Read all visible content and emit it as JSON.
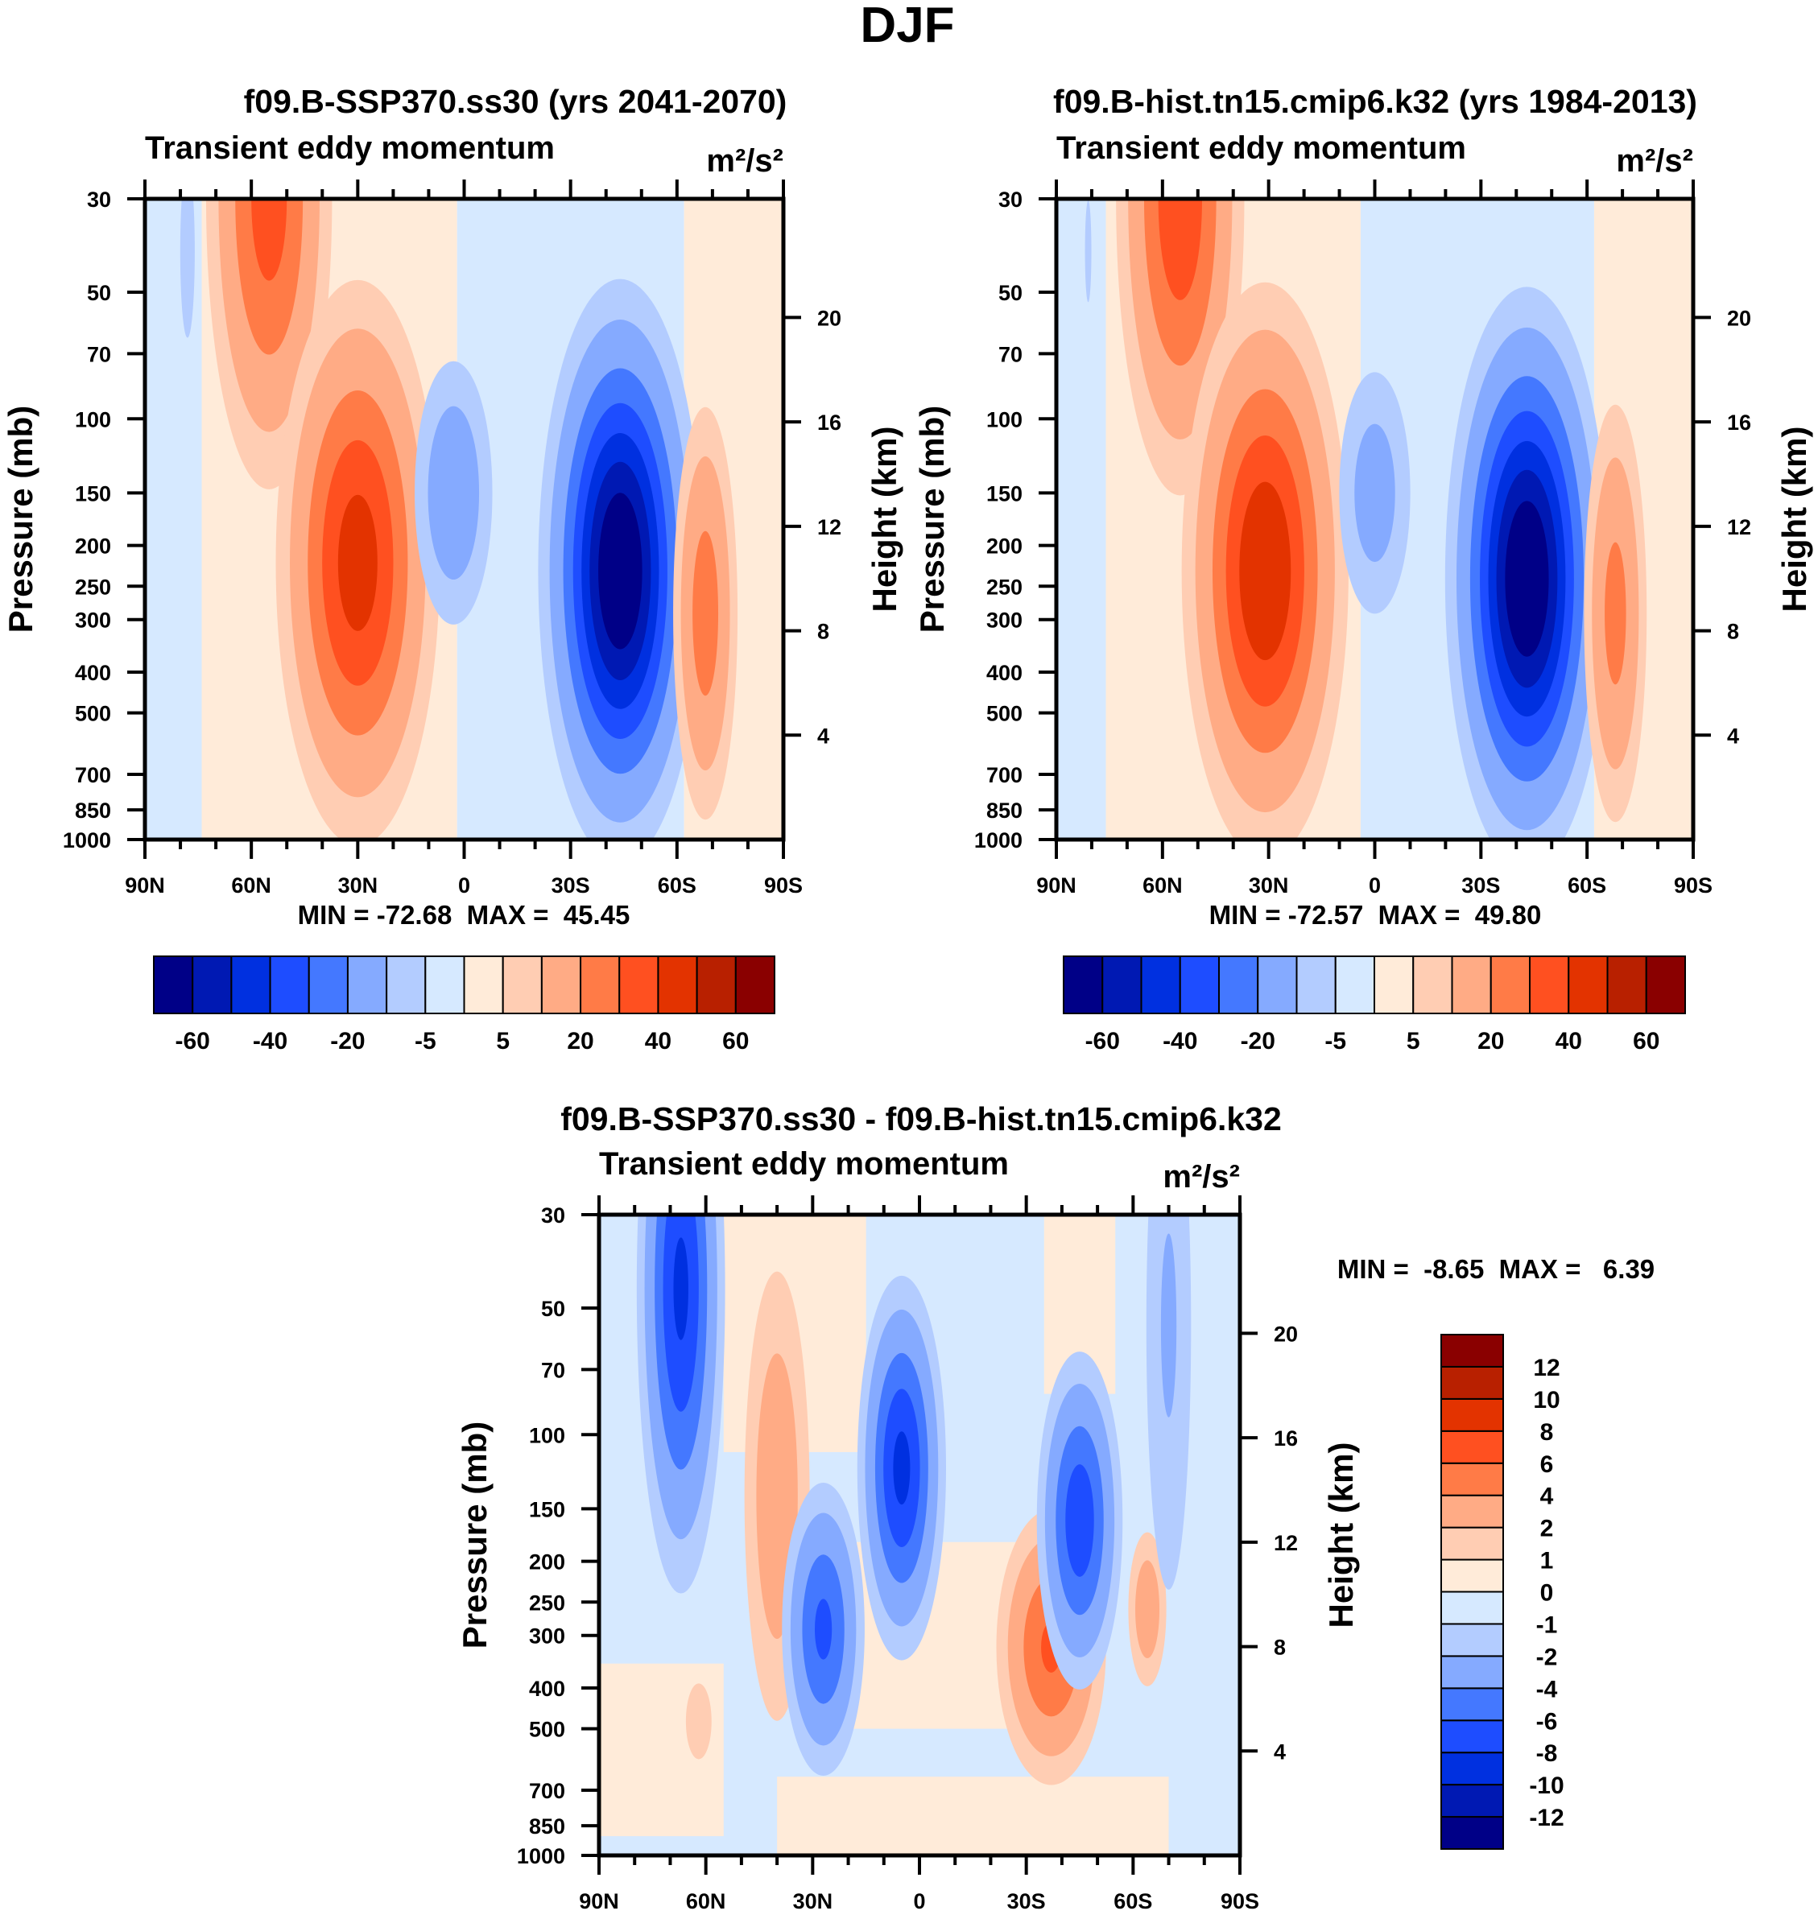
{
  "figure_title": "DJF",
  "colors": [
    "#000087",
    "#0019b3",
    "#0030e0",
    "#1e4dff",
    "#4478ff",
    "#85aaff",
    "#b3ccff",
    "#d6e9ff",
    "#ffebd9",
    "#ffcdb3",
    "#ffab85",
    "#ff7b47",
    "#ff5020",
    "#e33300",
    "#b82000",
    "#8a0000"
  ],
  "chart_data": [
    {
      "type": "heatmap",
      "subtype": "filled-contour",
      "title": "f09.B-SSP370.ss30 (yrs 2041-2070)",
      "left_string": "Transient eddy momentum",
      "units": "m²/s²",
      "xlabel": "",
      "ylabel": "Pressure (mb)",
      "ylabel_right": "Height (km)",
      "xlim": [
        90,
        -90
      ],
      "ylim": [
        1000,
        30
      ],
      "yscale": "log",
      "x_ticks": [
        90,
        60,
        30,
        0,
        -30,
        -60,
        -90
      ],
      "x_tick_labels": [
        "90N",
        "60N",
        "30N",
        "0",
        "30S",
        "60S",
        "90S"
      ],
      "y_ticks": [
        30,
        50,
        70,
        100,
        150,
        200,
        250,
        300,
        400,
        500,
        700,
        850,
        1000
      ],
      "y_tick_labels": [
        "30",
        "50",
        "70",
        "100",
        "150",
        "200",
        "250",
        "300",
        "400",
        "500",
        "700",
        "850",
        "1000"
      ],
      "height_ticks_km": [
        20,
        16,
        12,
        8,
        4
      ],
      "height_tick_labels": [
        "20",
        "16",
        "12",
        "8",
        "4"
      ],
      "stats": "MIN = -72.68  MAX =  45.45",
      "levels": [
        -60,
        -50,
        -40,
        -30,
        -20,
        -10,
        -5,
        0,
        5,
        10,
        20,
        30,
        40,
        50,
        60
      ],
      "colorbar_labels": [
        "-60",
        "-40",
        "-20",
        "-5",
        "5",
        "20",
        "40",
        "60"
      ],
      "colorbar_orientation": "horizontal",
      "bands": [
        {
          "lat": [
            90,
            74
          ],
          "p": [
            30,
            1000
          ],
          "value": -2
        },
        {
          "lat": [
            74,
            2
          ],
          "p": [
            30,
            1000
          ],
          "value": 2
        },
        {
          "lat": [
            2,
            -62
          ],
          "p": [
            30,
            1000
          ],
          "value": -2
        },
        {
          "lat": [
            -62,
            -90
          ],
          "p": [
            30,
            1000
          ],
          "value": 2
        }
      ],
      "features": [
        {
          "lat": 78,
          "p": 40,
          "amp": -7,
          "slat": 2.5,
          "slogp": 0.25
        },
        {
          "lat": 55,
          "p": 30,
          "amp": 35,
          "slat": 9,
          "slogp": 0.35
        },
        {
          "lat": 30,
          "p": 220,
          "amp": 45.45,
          "slat": 11,
          "slogp": 0.32
        },
        {
          "lat": 3,
          "p": 150,
          "amp": -17,
          "slat": 7,
          "slogp": 0.2
        },
        {
          "lat": -44,
          "p": 230,
          "amp": -72.68,
          "slat": 10,
          "slogp": 0.3
        },
        {
          "lat": -68,
          "p": 290,
          "amp": 26,
          "slat": 5,
          "slogp": 0.27
        }
      ]
    },
    {
      "type": "heatmap",
      "subtype": "filled-contour",
      "title": "f09.B-hist.tn15.cmip6.k32 (yrs 1984-2013)",
      "left_string": "Transient eddy momentum",
      "units": "m²/s²",
      "xlabel": "",
      "ylabel": "Pressure (mb)",
      "ylabel_right": "Height (km)",
      "xlim": [
        90,
        -90
      ],
      "ylim": [
        1000,
        30
      ],
      "yscale": "log",
      "x_ticks": [
        90,
        60,
        30,
        0,
        -30,
        -60,
        -90
      ],
      "x_tick_labels": [
        "90N",
        "60N",
        "30N",
        "0",
        "30S",
        "60S",
        "90S"
      ],
      "y_ticks": [
        30,
        50,
        70,
        100,
        150,
        200,
        250,
        300,
        400,
        500,
        700,
        850,
        1000
      ],
      "y_tick_labels": [
        "30",
        "50",
        "70",
        "100",
        "150",
        "200",
        "250",
        "300",
        "400",
        "500",
        "700",
        "850",
        "1000"
      ],
      "height_ticks_km": [
        20,
        16,
        12,
        8,
        4
      ],
      "height_tick_labels": [
        "20",
        "16",
        "12",
        "8",
        "4"
      ],
      "stats": "MIN = -72.57  MAX =  49.80",
      "levels": [
        -60,
        -50,
        -40,
        -30,
        -20,
        -10,
        -5,
        0,
        5,
        10,
        20,
        30,
        40,
        50,
        60
      ],
      "colorbar_labels": [
        "-60",
        "-40",
        "-20",
        "-5",
        "5",
        "20",
        "40",
        "60"
      ],
      "colorbar_orientation": "horizontal",
      "bands": [
        {
          "lat": [
            90,
            76
          ],
          "p": [
            30,
            1000
          ],
          "value": -2
        },
        {
          "lat": [
            76,
            4
          ],
          "p": [
            30,
            1000
          ],
          "value": 2
        },
        {
          "lat": [
            4,
            -62
          ],
          "p": [
            30,
            1000
          ],
          "value": -2
        },
        {
          "lat": [
            -62,
            -90
          ],
          "p": [
            30,
            1000
          ],
          "value": 2
        }
      ],
      "features": [
        {
          "lat": 81,
          "p": 40,
          "amp": -6,
          "slat": 1.5,
          "slogp": 0.2
        },
        {
          "lat": 55,
          "p": 30,
          "amp": 38,
          "slat": 9,
          "slogp": 0.35
        },
        {
          "lat": 31,
          "p": 230,
          "amp": 49.8,
          "slat": 11,
          "slogp": 0.32
        },
        {
          "lat": 0,
          "p": 150,
          "amp": -14,
          "slat": 7,
          "slogp": 0.2
        },
        {
          "lat": -43,
          "p": 240,
          "amp": -72.57,
          "slat": 10,
          "slogp": 0.3
        },
        {
          "lat": -68,
          "p": 290,
          "amp": 24,
          "slat": 5,
          "slogp": 0.28
        }
      ]
    },
    {
      "type": "heatmap",
      "subtype": "filled-contour",
      "title": "f09.B-SSP370.ss30 - f09.B-hist.tn15.cmip6.k32",
      "left_string": "Transient eddy momentum",
      "units": "m²/s²",
      "xlabel": "",
      "ylabel": "Pressure (mb)",
      "ylabel_right": "Height (km)",
      "xlim": [
        90,
        -90
      ],
      "ylim": [
        1000,
        30
      ],
      "yscale": "log",
      "x_ticks": [
        90,
        60,
        30,
        0,
        -30,
        -60,
        -90
      ],
      "x_tick_labels": [
        "90N",
        "60N",
        "30N",
        "0",
        "30S",
        "60S",
        "90S"
      ],
      "y_ticks": [
        30,
        50,
        70,
        100,
        150,
        200,
        250,
        300,
        400,
        500,
        700,
        850,
        1000
      ],
      "y_tick_labels": [
        "30",
        "50",
        "70",
        "100",
        "150",
        "200",
        "250",
        "300",
        "400",
        "500",
        "700",
        "850",
        "1000"
      ],
      "height_ticks_km": [
        20,
        16,
        12,
        8,
        4
      ],
      "height_tick_labels": [
        "20",
        "16",
        "12",
        "8",
        "4"
      ],
      "stats": "MIN =  -8.65  MAX =   6.39",
      "levels": [
        -12,
        -10,
        -8,
        -6,
        -4,
        -2,
        -1,
        0,
        1,
        2,
        4,
        6,
        8,
        10,
        12
      ],
      "colorbar_labels": [
        "-12",
        "-10",
        "-8",
        "-6",
        "-4",
        "-2",
        "-1",
        "0",
        "1",
        "2",
        "4",
        "6",
        "8",
        "10",
        "12"
      ],
      "colorbar_orientation": "vertical",
      "bands": [
        {
          "lat": [
            90,
            -90
          ],
          "p": [
            30,
            1000
          ],
          "value": -0.5
        },
        {
          "lat": [
            55,
            15
          ],
          "p": [
            30,
            110
          ],
          "value": 0.5
        },
        {
          "lat": [
            -35,
            -55
          ],
          "p": [
            30,
            80
          ],
          "value": 0.5
        },
        {
          "lat": [
            20,
            -30
          ],
          "p": [
            180,
            500
          ],
          "value": 0.5
        },
        {
          "lat": [
            90,
            55
          ],
          "p": [
            350,
            900
          ],
          "value": 0.5
        },
        {
          "lat": [
            40,
            -70
          ],
          "p": [
            650,
            1000
          ],
          "value": 0.5
        }
      ],
      "features": [
        {
          "lat": 67,
          "p": 45,
          "amp": -8.5,
          "slat": 6,
          "slogp": 0.35
        },
        {
          "lat": 40,
          "p": 140,
          "amp": 3.2,
          "slat": 6,
          "slogp": 0.35
        },
        {
          "lat": 5,
          "p": 120,
          "amp": -8.65,
          "slat": 6,
          "slogp": 0.22
        },
        {
          "lat": 27,
          "p": 290,
          "amp": -6.5,
          "slat": 6,
          "slogp": 0.18
        },
        {
          "lat": -37,
          "p": 320,
          "amp": 6.39,
          "slat": 8,
          "slogp": 0.17
        },
        {
          "lat": -45,
          "p": 160,
          "amp": -7.5,
          "slat": 6,
          "slogp": 0.2
        },
        {
          "lat": -64,
          "p": 260,
          "amp": 3.2,
          "slat": 3.5,
          "slogp": 0.12
        },
        {
          "lat": -70,
          "p": 55,
          "amp": -2.2,
          "slat": 5,
          "slogp": 0.5
        },
        {
          "lat": 62,
          "p": 480,
          "amp": 1.5,
          "slat": 4,
          "slogp": 0.1
        }
      ]
    }
  ]
}
